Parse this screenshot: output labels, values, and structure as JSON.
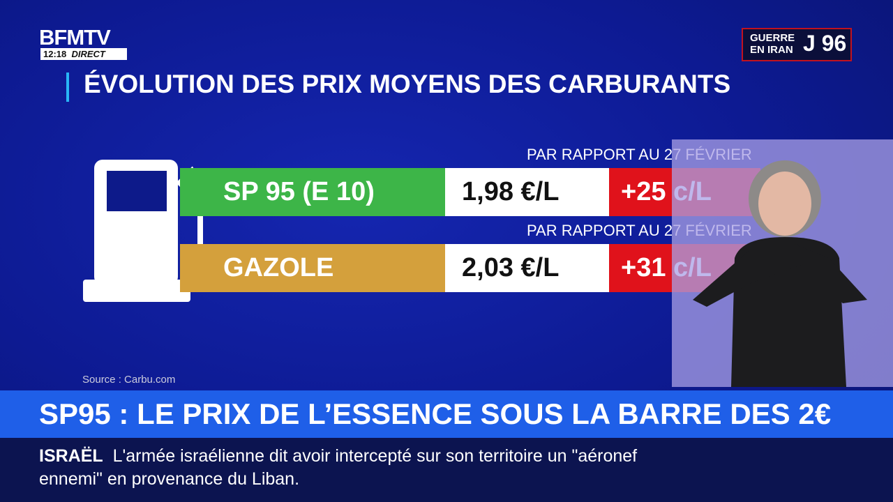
{
  "logo": {
    "name": "BFMTV",
    "time": "12:18",
    "live": "DIRECT"
  },
  "badge": {
    "line1": "GUERRE",
    "line2": "EN IRAN",
    "day": "J 96"
  },
  "title": "ÉVOLUTION DES PRIX MOYENS DES CARBURANTS",
  "rows": [
    {
      "note": "PAR RAPPORT AU 27 FÉVRIER",
      "fuel": "SP 95 (E 10)",
      "price": "1,98 €/L",
      "change": "+25 c/L"
    },
    {
      "note": "PAR RAPPORT AU 27 FÉVRIER",
      "fuel": "GAZOLE",
      "price": "2,03 €/L",
      "change": "+31 c/L"
    }
  ],
  "source": "Source : Carbu.com",
  "headline": "SP95 : LE PRIX DE L’ESSENCE SOUS LA BARRE DES 2€",
  "ticker": {
    "label": "ISRAËL",
    "text": "L'armée israélienne dit avoir intercepté sur son territoire un \"aéronef ennemi\" en provenance du Liban."
  }
}
